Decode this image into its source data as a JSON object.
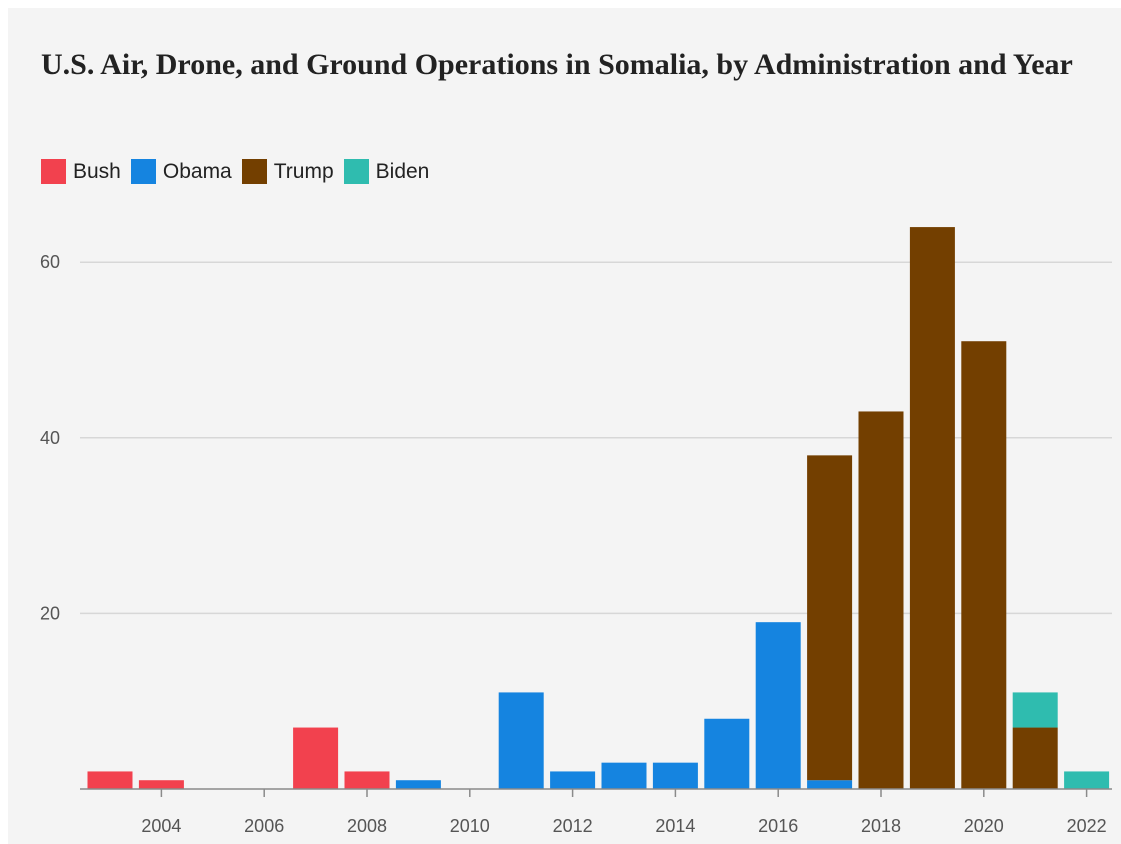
{
  "chart_data": {
    "type": "bar",
    "stacked": true,
    "title": "U.S. Air, Drone, and Ground Operations in Somalia, by Administration and Year",
    "xlabel": "",
    "ylabel": "",
    "ylim": [
      0,
      66
    ],
    "yticks": [
      20,
      40,
      60
    ],
    "grid": true,
    "legend_position": "top-left",
    "categories": [
      "2003",
      "2004",
      "2005",
      "2006",
      "2007",
      "2008",
      "2009",
      "2010",
      "2011",
      "2012",
      "2013",
      "2014",
      "2015",
      "2016",
      "2017",
      "2018",
      "2019",
      "2020",
      "2021",
      "2022"
    ],
    "xtick_labels": [
      "2004",
      "2006",
      "2008",
      "2010",
      "2012",
      "2014",
      "2016",
      "2018",
      "2020",
      "2022"
    ],
    "series": [
      {
        "name": "Bush",
        "color": "#f2414e",
        "values": [
          2,
          1,
          0,
          0,
          7,
          2,
          0,
          0,
          0,
          0,
          0,
          0,
          0,
          0,
          0,
          0,
          0,
          0,
          0,
          0
        ]
      },
      {
        "name": "Obama",
        "color": "#1584e0",
        "values": [
          0,
          0,
          0,
          0,
          0,
          0,
          1,
          0,
          11,
          2,
          3,
          3,
          8,
          19,
          1,
          0,
          0,
          0,
          0,
          0
        ]
      },
      {
        "name": "Trump",
        "color": "#733f00",
        "values": [
          0,
          0,
          0,
          0,
          0,
          0,
          0,
          0,
          0,
          0,
          0,
          0,
          0,
          0,
          37,
          43,
          64,
          51,
          7,
          0
        ]
      },
      {
        "name": "Biden",
        "color": "#2fbcaf",
        "values": [
          0,
          0,
          0,
          0,
          0,
          0,
          0,
          0,
          0,
          0,
          0,
          0,
          0,
          0,
          0,
          0,
          0,
          0,
          4,
          2
        ]
      }
    ]
  },
  "colors": {
    "panel_background": "#f4f4f4",
    "grid": "#d7d7d7",
    "axis": "#8a8a8a",
    "text": "#222222",
    "tick_text": "#555555"
  }
}
